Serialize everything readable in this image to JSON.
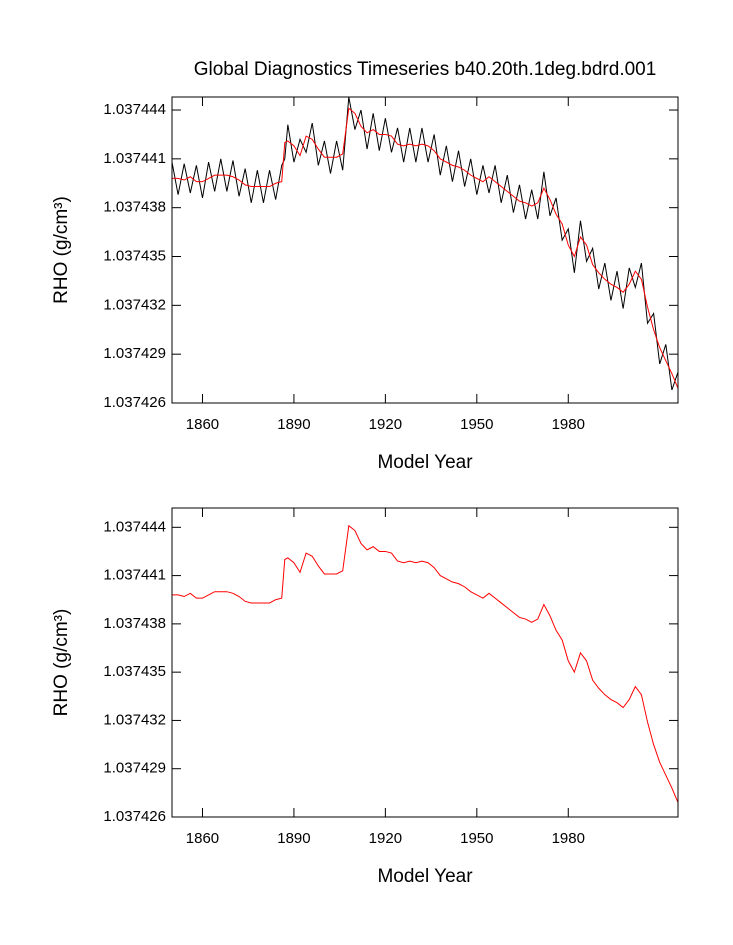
{
  "chart_data": [
    {
      "type": "line",
      "title": "Global Diagnostics Timeseries b40.20th.1deg.bdrd.001",
      "xlabel": "Model Year",
      "ylabel": "RHO (g/cm³)",
      "x": [
        1850,
        1852,
        1854,
        1856,
        1858,
        1860,
        1862,
        1864,
        1866,
        1868,
        1870,
        1872,
        1874,
        1876,
        1878,
        1880,
        1882,
        1884,
        1886,
        1887,
        1888,
        1890,
        1892,
        1894,
        1896,
        1898,
        1900,
        1902,
        1904,
        1906,
        1908,
        1910,
        1912,
        1914,
        1916,
        1918,
        1920,
        1922,
        1924,
        1926,
        1928,
        1930,
        1932,
        1934,
        1936,
        1938,
        1940,
        1942,
        1944,
        1946,
        1948,
        1950,
        1952,
        1954,
        1956,
        1958,
        1960,
        1962,
        1964,
        1966,
        1968,
        1970,
        1972,
        1974,
        1976,
        1978,
        1980,
        1982,
        1984,
        1986,
        1988,
        1990,
        1992,
        1994,
        1996,
        1998,
        2000,
        2002,
        2004,
        2006,
        2008,
        2010,
        2012,
        2014,
        2016
      ],
      "xlim": [
        1850,
        2016
      ],
      "xticks": [
        1860,
        1890,
        1920,
        1950,
        1980
      ],
      "ylim": [
        1.037426,
        1.0374448
      ],
      "yticks": [
        1.037426,
        1.037429,
        1.037432,
        1.037435,
        1.037438,
        1.037441,
        1.037444
      ],
      "series": [
        {
          "color": "#000000",
          "values": [
            1.0374408,
            1.0374388,
            1.0374407,
            1.0374389,
            1.0374406,
            1.0374386,
            1.0374408,
            1.037439,
            1.037441,
            1.037439,
            1.0374409,
            1.0374387,
            1.0374404,
            1.0374383,
            1.0374403,
            1.0374383,
            1.0374403,
            1.0374385,
            1.0374406,
            1.037441,
            1.0374431,
            1.0374408,
            1.0374422,
            1.0374414,
            1.0374432,
            1.0374406,
            1.0374421,
            1.0374401,
            1.0374421,
            1.0374403,
            1.0374448,
            1.0374428,
            1.037444,
            1.0374416,
            1.0374438,
            1.0374415,
            1.0374435,
            1.0374414,
            1.0374429,
            1.0374408,
            1.0374429,
            1.0374408,
            1.0374429,
            1.0374408,
            1.0374425,
            1.03744,
            1.0374418,
            1.0374396,
            1.0374415,
            1.0374393,
            1.037441,
            1.0374388,
            1.0374406,
            1.0374389,
            1.0374406,
            1.0374383,
            1.03744,
            1.0374377,
            1.0374394,
            1.0374373,
            1.0374391,
            1.0374373,
            1.0374402,
            1.0374375,
            1.0374386,
            1.037436,
            1.0374367,
            1.037434,
            1.0374372,
            1.0374347,
            1.0374355,
            1.037433,
            1.0374346,
            1.0374323,
            1.0374341,
            1.0374318,
            1.0374343,
            1.0374331,
            1.0374346,
            1.0374309,
            1.0374315,
            1.0374284,
            1.0374296,
            1.0374268,
            1.0374279
          ]
        },
        {
          "color": "#ff0000",
          "values": [
            1.0374398,
            1.0374398,
            1.0374397,
            1.0374399,
            1.0374396,
            1.0374396,
            1.0374398,
            1.03744,
            1.03744,
            1.03744,
            1.0374399,
            1.0374397,
            1.0374394,
            1.0374393,
            1.0374393,
            1.0374393,
            1.0374393,
            1.0374395,
            1.0374396,
            1.037442,
            1.0374421,
            1.0374418,
            1.0374412,
            1.0374424,
            1.0374422,
            1.0374416,
            1.0374411,
            1.0374411,
            1.0374411,
            1.0374413,
            1.0374441,
            1.0374438,
            1.037443,
            1.0374426,
            1.0374428,
            1.0374425,
            1.0374425,
            1.0374424,
            1.0374419,
            1.0374418,
            1.0374419,
            1.0374418,
            1.0374419,
            1.0374418,
            1.0374415,
            1.037441,
            1.0374408,
            1.0374406,
            1.0374405,
            1.0374403,
            1.03744,
            1.0374398,
            1.0374396,
            1.0374399,
            1.0374396,
            1.0374393,
            1.037439,
            1.0374387,
            1.0374384,
            1.0374383,
            1.0374381,
            1.0374383,
            1.0374392,
            1.0374385,
            1.0374376,
            1.037437,
            1.0374357,
            1.037435,
            1.0374362,
            1.0374357,
            1.0374345,
            1.037434,
            1.0374336,
            1.0374333,
            1.0374331,
            1.0374328,
            1.0374333,
            1.0374341,
            1.0374336,
            1.0374319,
            1.0374305,
            1.0374294,
            1.0374286,
            1.0374278,
            1.0374269
          ]
        }
      ]
    },
    {
      "type": "line",
      "xlabel": "Model Year",
      "ylabel": "RHO (g/cm³)",
      "x": [
        1850,
        1852,
        1854,
        1856,
        1858,
        1860,
        1862,
        1864,
        1866,
        1868,
        1870,
        1872,
        1874,
        1876,
        1878,
        1880,
        1882,
        1884,
        1886,
        1887,
        1888,
        1890,
        1892,
        1894,
        1896,
        1898,
        1900,
        1902,
        1904,
        1906,
        1908,
        1910,
        1912,
        1914,
        1916,
        1918,
        1920,
        1922,
        1924,
        1926,
        1928,
        1930,
        1932,
        1934,
        1936,
        1938,
        1940,
        1942,
        1944,
        1946,
        1948,
        1950,
        1952,
        1954,
        1956,
        1958,
        1960,
        1962,
        1964,
        1966,
        1968,
        1970,
        1972,
        1974,
        1976,
        1978,
        1980,
        1982,
        1984,
        1986,
        1988,
        1990,
        1992,
        1994,
        1996,
        1998,
        2000,
        2002,
        2004,
        2006,
        2008,
        2010,
        2012,
        2014,
        2016
      ],
      "xlim": [
        1850,
        2016
      ],
      "xticks": [
        1860,
        1890,
        1920,
        1950,
        1980
      ],
      "ylim": [
        1.037426,
        1.0374452
      ],
      "yticks": [
        1.037426,
        1.037429,
        1.037432,
        1.037435,
        1.037438,
        1.037441,
        1.037444
      ],
      "series": [
        {
          "color": "#ff0000",
          "values": [
            1.0374398,
            1.0374398,
            1.0374397,
            1.0374399,
            1.0374396,
            1.0374396,
            1.0374398,
            1.03744,
            1.03744,
            1.03744,
            1.0374399,
            1.0374397,
            1.0374394,
            1.0374393,
            1.0374393,
            1.0374393,
            1.0374393,
            1.0374395,
            1.0374396,
            1.037442,
            1.0374421,
            1.0374418,
            1.0374412,
            1.0374424,
            1.0374422,
            1.0374416,
            1.0374411,
            1.0374411,
            1.0374411,
            1.0374413,
            1.0374441,
            1.0374438,
            1.037443,
            1.0374426,
            1.0374428,
            1.0374425,
            1.0374425,
            1.0374424,
            1.0374419,
            1.0374418,
            1.0374419,
            1.0374418,
            1.0374419,
            1.0374418,
            1.0374415,
            1.037441,
            1.0374408,
            1.0374406,
            1.0374405,
            1.0374403,
            1.03744,
            1.0374398,
            1.0374396,
            1.0374399,
            1.0374396,
            1.0374393,
            1.037439,
            1.0374387,
            1.0374384,
            1.0374383,
            1.0374381,
            1.0374383,
            1.0374392,
            1.0374385,
            1.0374376,
            1.037437,
            1.0374357,
            1.037435,
            1.0374362,
            1.0374357,
            1.0374345,
            1.037434,
            1.0374336,
            1.0374333,
            1.0374331,
            1.0374328,
            1.0374333,
            1.0374341,
            1.0374336,
            1.0374319,
            1.0374305,
            1.0374294,
            1.0374286,
            1.0374278,
            1.0374269
          ]
        }
      ]
    }
  ]
}
